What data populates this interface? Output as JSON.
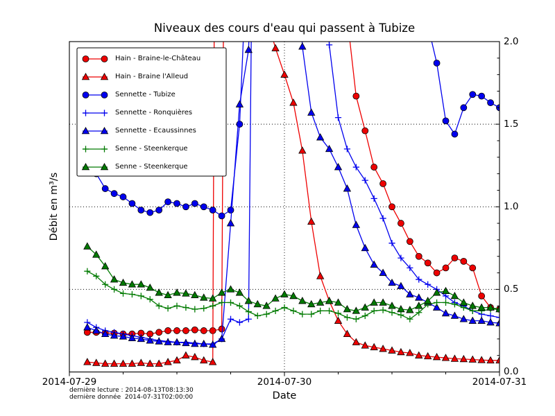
{
  "figure": {
    "title": "Niveaux des cours d'eau qui passent à Tubize"
  },
  "axes": {
    "xlabel": "Date",
    "ylabel": "Débit en m³/s",
    "x_tick_labels": [
      "2014-07-29",
      "2014-07-30",
      "2014-07-31"
    ],
    "y_tick_labels": [
      "0.0",
      "0.5",
      "1.0",
      "1.5",
      "2.0"
    ]
  },
  "footnotes": {
    "last_read": "dernière lecture : 2014-08-13T08:13:30",
    "last_data": "dernière donnée  2014-07-31T02:00:00"
  },
  "chart_data": {
    "type": "line",
    "title": "Niveaux des cours d'eau qui passent à Tubize",
    "xlabel": "Date",
    "ylabel": "Débit en m³/s",
    "x_unit": "hours since 2014-07-29T00:00",
    "xlim": [
      0,
      48
    ],
    "ylim": [
      0.0,
      2.0
    ],
    "x_ticks": [
      {
        "t": 0,
        "label": "2014-07-29"
      },
      {
        "t": 24,
        "label": "2014-07-30"
      },
      {
        "t": 48,
        "label": "2014-07-31"
      }
    ],
    "y_ticks": [
      0.0,
      0.5,
      1.0,
      1.5,
      2.0
    ],
    "grid": {
      "y_dotted": [
        0.5,
        1.0,
        1.5
      ],
      "x_dotted_t": [
        24
      ]
    },
    "legend_position": "upper-left",
    "note": "values above 2.0 are off-scale and clipped at the top of the axes",
    "series": [
      {
        "name": "Hain - Braine-le-Château",
        "color": "#ee0000",
        "marker": "circle",
        "points": [
          [
            2,
            0.24
          ],
          [
            3,
            0.24
          ],
          [
            4,
            0.235
          ],
          [
            5,
            0.235
          ],
          [
            6,
            0.23
          ],
          [
            7,
            0.23
          ],
          [
            8,
            0.235
          ],
          [
            9,
            0.23
          ],
          [
            10,
            0.24
          ],
          [
            11,
            0.25
          ],
          [
            12,
            0.25
          ],
          [
            13,
            0.25
          ],
          [
            14,
            0.255
          ],
          [
            15,
            0.25
          ],
          [
            16,
            0.25
          ],
          [
            17,
            0.26
          ],
          [
            17.25,
            2.6
          ],
          [
            18,
            3.2
          ],
          [
            30.5,
            3.2
          ],
          [
            31,
            2.15
          ],
          [
            32,
            1.67
          ],
          [
            33,
            1.46
          ],
          [
            34,
            1.24
          ],
          [
            35,
            1.14
          ],
          [
            36,
            1.0
          ],
          [
            37,
            0.9
          ],
          [
            38,
            0.79
          ],
          [
            39,
            0.7
          ],
          [
            40,
            0.66
          ],
          [
            41,
            0.6
          ],
          [
            42,
            0.63
          ],
          [
            43,
            0.69
          ],
          [
            44,
            0.67
          ],
          [
            45,
            0.63
          ],
          [
            46,
            0.46
          ],
          [
            47,
            0.39
          ],
          [
            48,
            0.38
          ]
        ]
      },
      {
        "name": "Hain - Braine l'Alleud",
        "color": "#ee0000",
        "marker": "triangle",
        "points": [
          [
            2,
            0.06
          ],
          [
            3,
            0.055
          ],
          [
            4,
            0.05
          ],
          [
            5,
            0.05
          ],
          [
            6,
            0.05
          ],
          [
            7,
            0.05
          ],
          [
            8,
            0.055
          ],
          [
            9,
            0.05
          ],
          [
            10,
            0.05
          ],
          [
            11,
            0.06
          ],
          [
            12,
            0.07
          ],
          [
            13,
            0.1
          ],
          [
            14,
            0.09
          ],
          [
            15,
            0.07
          ],
          [
            16,
            0.06
          ],
          [
            16.2,
            2.6
          ],
          [
            17,
            3.2
          ],
          [
            21.5,
            3.2
          ],
          [
            22,
            2.15
          ],
          [
            23,
            1.96
          ],
          [
            24,
            1.8
          ],
          [
            25,
            1.63
          ],
          [
            26,
            1.34
          ],
          [
            27,
            0.91
          ],
          [
            28,
            0.58
          ],
          [
            29,
            0.43
          ],
          [
            30,
            0.31
          ],
          [
            31,
            0.23
          ],
          [
            32,
            0.18
          ],
          [
            33,
            0.16
          ],
          [
            34,
            0.15
          ],
          [
            35,
            0.14
          ],
          [
            36,
            0.13
          ],
          [
            37,
            0.12
          ],
          [
            38,
            0.115
          ],
          [
            39,
            0.1
          ],
          [
            40,
            0.095
          ],
          [
            41,
            0.09
          ],
          [
            42,
            0.085
          ],
          [
            43,
            0.08
          ],
          [
            44,
            0.078
          ],
          [
            45,
            0.075
          ],
          [
            46,
            0.072
          ],
          [
            47,
            0.07
          ],
          [
            48,
            0.07
          ]
        ]
      },
      {
        "name": "Sennette - Tubize",
        "color": "#0000ee",
        "marker": "circle",
        "points": [
          [
            2,
            1.28
          ],
          [
            3,
            1.2
          ],
          [
            4,
            1.11
          ],
          [
            5,
            1.08
          ],
          [
            6,
            1.06
          ],
          [
            7,
            1.02
          ],
          [
            8,
            0.98
          ],
          [
            9,
            0.965
          ],
          [
            10,
            0.98
          ],
          [
            11,
            1.03
          ],
          [
            12,
            1.02
          ],
          [
            13,
            1.0
          ],
          [
            14,
            1.02
          ],
          [
            15,
            1.0
          ],
          [
            16,
            0.98
          ],
          [
            17,
            0.945
          ],
          [
            18,
            0.98
          ],
          [
            19,
            1.5
          ],
          [
            19.8,
            2.5
          ],
          [
            20.5,
            3.2
          ],
          [
            39.5,
            3.2
          ],
          [
            40,
            2.1
          ],
          [
            41,
            1.87
          ],
          [
            42,
            1.52
          ],
          [
            43,
            1.44
          ],
          [
            44,
            1.6
          ],
          [
            45,
            1.68
          ],
          [
            46,
            1.67
          ],
          [
            47,
            1.63
          ],
          [
            48,
            1.6
          ]
        ]
      },
      {
        "name": "Sennette - Ronquières",
        "color": "#0000ee",
        "marker": "plus",
        "points": [
          [
            2,
            0.3
          ],
          [
            3,
            0.27
          ],
          [
            4,
            0.25
          ],
          [
            5,
            0.24
          ],
          [
            6,
            0.23
          ],
          [
            7,
            0.22
          ],
          [
            8,
            0.21
          ],
          [
            9,
            0.2
          ],
          [
            10,
            0.19
          ],
          [
            11,
            0.185
          ],
          [
            12,
            0.18
          ],
          [
            13,
            0.18
          ],
          [
            14,
            0.175
          ],
          [
            15,
            0.17
          ],
          [
            16,
            0.17
          ],
          [
            17,
            0.2
          ],
          [
            18,
            0.32
          ],
          [
            19,
            0.3
          ],
          [
            20,
            0.32
          ],
          [
            20.4,
            2.6
          ],
          [
            21,
            3.2
          ],
          [
            28.2,
            3.2
          ],
          [
            28.8,
            2.3
          ],
          [
            29,
            1.98
          ],
          [
            30,
            1.54
          ],
          [
            31,
            1.35
          ],
          [
            32,
            1.24
          ],
          [
            33,
            1.16
          ],
          [
            34,
            1.05
          ],
          [
            35,
            0.93
          ],
          [
            36,
            0.78
          ],
          [
            37,
            0.69
          ],
          [
            38,
            0.63
          ],
          [
            39,
            0.56
          ],
          [
            40,
            0.53
          ],
          [
            41,
            0.5
          ],
          [
            42,
            0.46
          ],
          [
            43,
            0.42
          ],
          [
            44,
            0.4
          ],
          [
            45,
            0.37
          ],
          [
            46,
            0.35
          ],
          [
            47,
            0.34
          ],
          [
            48,
            0.33
          ]
        ]
      },
      {
        "name": "Sennette - Ecaussinnes",
        "color": "#0000ee",
        "marker": "triangle",
        "points": [
          [
            2,
            0.27
          ],
          [
            3,
            0.25
          ],
          [
            4,
            0.23
          ],
          [
            5,
            0.22
          ],
          [
            6,
            0.215
          ],
          [
            7,
            0.205
          ],
          [
            8,
            0.2
          ],
          [
            9,
            0.19
          ],
          [
            10,
            0.185
          ],
          [
            11,
            0.18
          ],
          [
            12,
            0.18
          ],
          [
            13,
            0.175
          ],
          [
            14,
            0.17
          ],
          [
            15,
            0.17
          ],
          [
            16,
            0.165
          ],
          [
            17,
            0.2
          ],
          [
            18,
            0.9
          ],
          [
            19,
            1.62
          ],
          [
            20,
            1.95
          ],
          [
            20.8,
            3.2
          ],
          [
            25.2,
            3.2
          ],
          [
            25.7,
            2.4
          ],
          [
            26,
            1.97
          ],
          [
            27,
            1.57
          ],
          [
            28,
            1.42
          ],
          [
            29,
            1.35
          ],
          [
            30,
            1.24
          ],
          [
            31,
            1.11
          ],
          [
            32,
            0.89
          ],
          [
            33,
            0.75
          ],
          [
            34,
            0.65
          ],
          [
            35,
            0.6
          ],
          [
            36,
            0.54
          ],
          [
            37,
            0.52
          ],
          [
            38,
            0.47
          ],
          [
            39,
            0.45
          ],
          [
            40,
            0.42
          ],
          [
            41,
            0.39
          ],
          [
            42,
            0.355
          ],
          [
            43,
            0.34
          ],
          [
            44,
            0.32
          ],
          [
            45,
            0.31
          ],
          [
            46,
            0.31
          ],
          [
            47,
            0.3
          ],
          [
            48,
            0.295
          ]
        ]
      },
      {
        "name": "Senne - Steenkerque",
        "color": "#007a00",
        "marker": "plus",
        "points": [
          [
            2,
            0.61
          ],
          [
            3,
            0.58
          ],
          [
            4,
            0.53
          ],
          [
            5,
            0.5
          ],
          [
            6,
            0.475
          ],
          [
            7,
            0.47
          ],
          [
            8,
            0.46
          ],
          [
            9,
            0.44
          ],
          [
            10,
            0.4
          ],
          [
            11,
            0.385
          ],
          [
            12,
            0.4
          ],
          [
            13,
            0.39
          ],
          [
            14,
            0.38
          ],
          [
            15,
            0.385
          ],
          [
            16,
            0.4
          ],
          [
            17,
            0.42
          ],
          [
            18,
            0.42
          ],
          [
            19,
            0.4
          ],
          [
            20,
            0.365
          ],
          [
            21,
            0.34
          ],
          [
            22,
            0.35
          ],
          [
            23,
            0.37
          ],
          [
            24,
            0.39
          ],
          [
            25,
            0.37
          ],
          [
            26,
            0.35
          ],
          [
            27,
            0.35
          ],
          [
            28,
            0.37
          ],
          [
            29,
            0.37
          ],
          [
            30,
            0.355
          ],
          [
            31,
            0.33
          ],
          [
            32,
            0.32
          ],
          [
            33,
            0.34
          ],
          [
            34,
            0.37
          ],
          [
            35,
            0.375
          ],
          [
            36,
            0.36
          ],
          [
            37,
            0.345
          ],
          [
            38,
            0.32
          ],
          [
            39,
            0.36
          ],
          [
            40,
            0.41
          ],
          [
            41,
            0.42
          ],
          [
            42,
            0.42
          ],
          [
            43,
            0.41
          ],
          [
            44,
            0.39
          ],
          [
            45,
            0.37
          ],
          [
            46,
            0.37
          ],
          [
            47,
            0.38
          ],
          [
            48,
            0.38
          ]
        ]
      },
      {
        "name": "Senne - Steenkerque",
        "color": "#007a00",
        "marker": "triangle",
        "points": [
          [
            2,
            0.76
          ],
          [
            3,
            0.71
          ],
          [
            4,
            0.64
          ],
          [
            5,
            0.56
          ],
          [
            6,
            0.54
          ],
          [
            7,
            0.53
          ],
          [
            8,
            0.53
          ],
          [
            9,
            0.51
          ],
          [
            10,
            0.48
          ],
          [
            11,
            0.465
          ],
          [
            12,
            0.48
          ],
          [
            13,
            0.475
          ],
          [
            14,
            0.465
          ],
          [
            15,
            0.45
          ],
          [
            16,
            0.445
          ],
          [
            17,
            0.48
          ],
          [
            18,
            0.5
          ],
          [
            19,
            0.48
          ],
          [
            20,
            0.43
          ],
          [
            21,
            0.41
          ],
          [
            22,
            0.4
          ],
          [
            23,
            0.445
          ],
          [
            24,
            0.47
          ],
          [
            25,
            0.46
          ],
          [
            26,
            0.43
          ],
          [
            27,
            0.41
          ],
          [
            28,
            0.42
          ],
          [
            29,
            0.43
          ],
          [
            30,
            0.42
          ],
          [
            31,
            0.38
          ],
          [
            32,
            0.37
          ],
          [
            33,
            0.39
          ],
          [
            34,
            0.42
          ],
          [
            35,
            0.42
          ],
          [
            36,
            0.4
          ],
          [
            37,
            0.38
          ],
          [
            38,
            0.375
          ],
          [
            39,
            0.4
          ],
          [
            40,
            0.43
          ],
          [
            41,
            0.48
          ],
          [
            42,
            0.49
          ],
          [
            43,
            0.46
          ],
          [
            44,
            0.42
          ],
          [
            45,
            0.4
          ],
          [
            46,
            0.39
          ],
          [
            47,
            0.39
          ],
          [
            48,
            0.38
          ]
        ]
      }
    ]
  }
}
